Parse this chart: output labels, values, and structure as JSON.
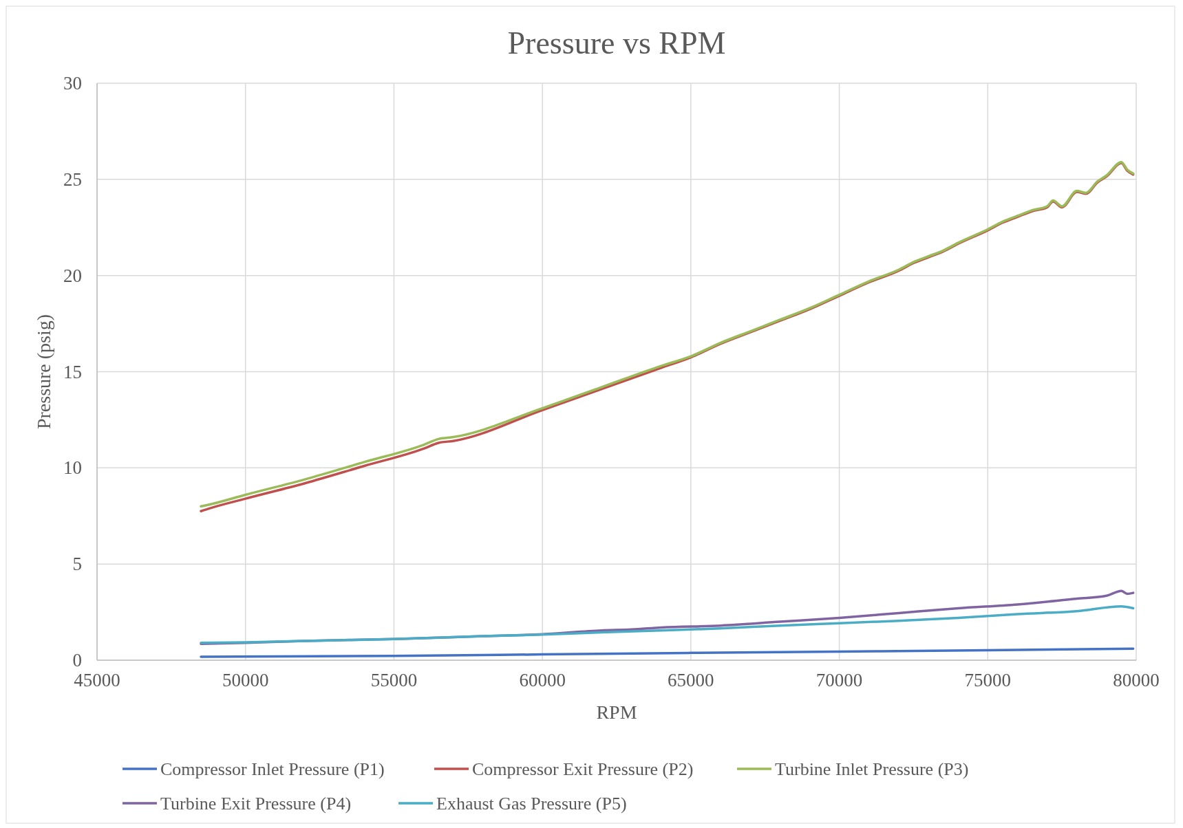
{
  "chart_data": {
    "type": "line",
    "title": "Pressure vs RPM",
    "xlabel": "RPM",
    "ylabel": "Pressure (psig)",
    "xlim": [
      45000,
      80000
    ],
    "xticks": [
      45000,
      50000,
      55000,
      60000,
      65000,
      70000,
      75000,
      80000
    ],
    "ylim": [
      0,
      30
    ],
    "yticks": [
      0,
      5,
      10,
      15,
      20,
      25,
      30
    ],
    "grid": true,
    "legend": "bottom",
    "marker": "none",
    "line_style": "solid",
    "series": [
      {
        "name": "Compressor Inlet Pressure (P1)",
        "color": "#4472c4",
        "x": [
          48500,
          55000,
          60000,
          65000,
          70000,
          75000,
          79900
        ],
        "values": [
          0.18,
          0.22,
          0.3,
          0.38,
          0.45,
          0.52,
          0.6
        ]
      },
      {
        "name": "Compressor Exit Pressure (P2)",
        "color": "#c0504d",
        "x": [
          48500,
          48800,
          50000,
          52000,
          54000,
          56000,
          56500,
          57000,
          60000,
          62000,
          64000,
          65000,
          66000,
          67000,
          68000,
          69000,
          70000,
          71000,
          72000,
          72500,
          73000,
          73500,
          74000,
          75000,
          75500,
          76000,
          76500,
          77000,
          77200,
          77500,
          78000,
          78300,
          78700,
          79000,
          79500,
          79700,
          79900
        ],
        "values": [
          7.75,
          7.9,
          8.4,
          9.2,
          10.1,
          11.0,
          11.3,
          11.4,
          13.0,
          14.1,
          15.2,
          15.75,
          16.45,
          17.05,
          17.65,
          18.25,
          18.95,
          19.65,
          20.25,
          20.65,
          20.95,
          21.25,
          21.65,
          22.35,
          22.75,
          23.05,
          23.35,
          23.55,
          23.85,
          23.55,
          24.35,
          24.25,
          24.85,
          25.15,
          25.85,
          25.45,
          25.25
        ]
      },
      {
        "name": "Turbine Inlet Pressure (P3)",
        "color": "#9bbb59",
        "x": [
          48500,
          48800,
          50000,
          52000,
          54000,
          56000,
          56500,
          57000,
          60000,
          62000,
          64000,
          65000,
          66000,
          67000,
          68000,
          69000,
          70000,
          71000,
          72000,
          72500,
          73000,
          73500,
          74000,
          75000,
          75500,
          76000,
          76500,
          77000,
          77200,
          77500,
          78000,
          78300,
          78700,
          79000,
          79500,
          79700,
          79900
        ],
        "values": [
          8.0,
          8.1,
          8.6,
          9.4,
          10.3,
          11.2,
          11.5,
          11.6,
          13.1,
          14.2,
          15.3,
          15.8,
          16.5,
          17.1,
          17.7,
          18.3,
          19.0,
          19.7,
          20.3,
          20.7,
          21.0,
          21.3,
          21.7,
          22.4,
          22.8,
          23.1,
          23.4,
          23.6,
          23.9,
          23.6,
          24.4,
          24.3,
          24.9,
          25.2,
          25.9,
          25.5,
          25.3
        ]
      },
      {
        "name": "Turbine Exit Pressure (P4)",
        "color": "#8064a2",
        "x": [
          48500,
          50000,
          52000,
          55000,
          58000,
          60000,
          62000,
          63000,
          64000,
          66000,
          68000,
          70000,
          72000,
          74000,
          76000,
          78000,
          79000,
          79500,
          79700,
          79900
        ],
        "values": [
          0.85,
          0.9,
          1.0,
          1.1,
          1.25,
          1.35,
          1.55,
          1.6,
          1.7,
          1.8,
          2.0,
          2.2,
          2.45,
          2.7,
          2.9,
          3.2,
          3.35,
          3.6,
          3.45,
          3.5
        ]
      },
      {
        "name": "Exhaust Gas Pressure (P5)",
        "color": "#4bacc6",
        "x": [
          48500,
          50000,
          52000,
          55000,
          58000,
          60000,
          62000,
          64000,
          66000,
          68000,
          70000,
          72000,
          74000,
          76000,
          78000,
          79500,
          79900
        ],
        "values": [
          0.9,
          0.93,
          1.0,
          1.1,
          1.25,
          1.33,
          1.45,
          1.55,
          1.65,
          1.8,
          1.92,
          2.05,
          2.2,
          2.4,
          2.55,
          2.8,
          2.7
        ]
      }
    ]
  }
}
